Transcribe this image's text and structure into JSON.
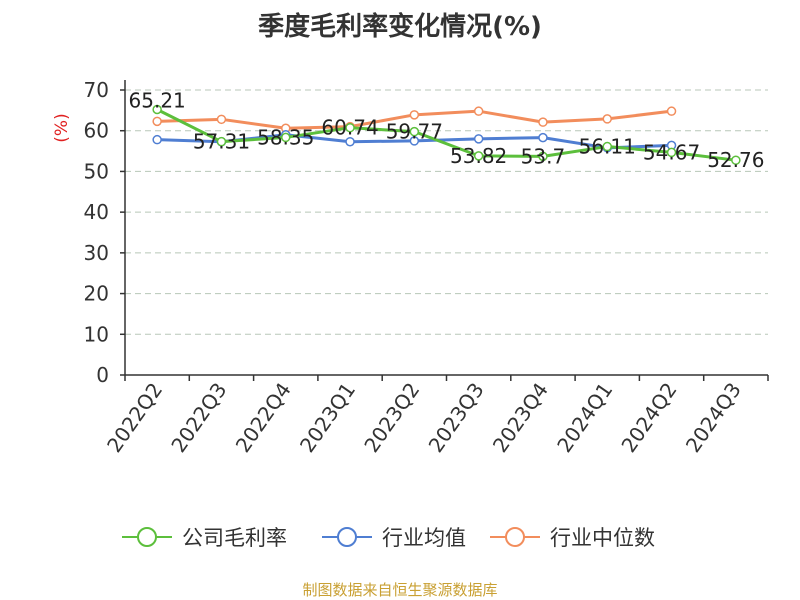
{
  "chart_data": {
    "type": "line",
    "title": "季度毛利率变化情况(%)",
    "ylabel": "(%)",
    "xlabel": "",
    "ylim": [
      0,
      70
    ],
    "yticks": [
      0,
      10,
      20,
      30,
      40,
      50,
      60,
      70
    ],
    "grid": true,
    "legend_position": "bottom",
    "categories": [
      "2022Q2",
      "2022Q3",
      "2022Q4",
      "2023Q1",
      "2023Q2",
      "2023Q3",
      "2023Q4",
      "2024Q1",
      "2024Q2",
      "2024Q3"
    ],
    "series": [
      {
        "name": "公司毛利率",
        "color": "#5cbf3c",
        "values": [
          65.21,
          57.31,
          58.35,
          60.74,
          59.77,
          53.82,
          53.7,
          56.11,
          54.67,
          52.76
        ],
        "labels": [
          "65.21",
          "57.31",
          "58.35",
          "60.74",
          "59.77",
          "53.82",
          "53.7",
          "56.11",
          "54.67",
          "52.76"
        ]
      },
      {
        "name": "行业均值",
        "color": "#4f7ed2",
        "values": [
          57.8,
          57.3,
          59.0,
          57.3,
          57.5,
          58.0,
          58.3,
          55.8,
          56.4,
          null
        ]
      },
      {
        "name": "行业中位数",
        "color": "#f28d5c",
        "values": [
          62.3,
          62.8,
          60.6,
          61.0,
          63.9,
          64.8,
          62.1,
          62.9,
          64.8,
          null
        ]
      }
    ]
  },
  "footer": {
    "source_text": "制图数据来自恒生聚源数据库",
    "color": "#c9a033"
  },
  "colors": {
    "axis_label": "#e02020",
    "grid": "#b8c7b8",
    "text": "#333333"
  }
}
